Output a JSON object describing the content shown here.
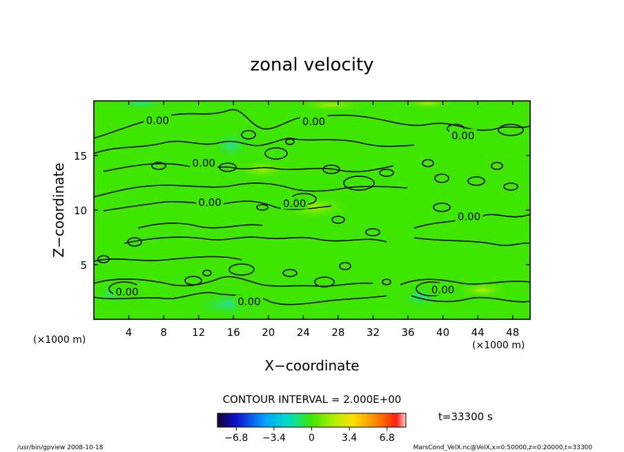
{
  "chart_data": {
    "type": "heatmap",
    "title": "zonal velocity",
    "xlabel": "X−coordinate",
    "ylabel": "Z−coordinate",
    "x_unit_left": "(×1000 m)",
    "x_unit_right": "(×1000 m)",
    "xlim": [
      0,
      50
    ],
    "ylim": [
      0,
      20
    ],
    "xticks": [
      "4",
      "8",
      "12",
      "16",
      "20",
      "24",
      "28",
      "32",
      "36",
      "40",
      "44",
      "48"
    ],
    "xtick_values": [
      4,
      8,
      12,
      16,
      20,
      24,
      28,
      32,
      36,
      40,
      44,
      48
    ],
    "yticks": [
      "5",
      "10",
      "15"
    ],
    "ytick_values": [
      5,
      10,
      15
    ],
    "contour_interval_text": "CONTOUR INTERVAL = 2.000E+00",
    "contour_level": 0.0,
    "contour_labels": [
      {
        "text": "0.00",
        "x": 7.3,
        "y": 18.2
      },
      {
        "text": "0.00",
        "x": 25.2,
        "y": 18.1
      },
      {
        "text": "0.00",
        "x": 42.3,
        "y": 16.8
      },
      {
        "text": "0.00",
        "x": 12.6,
        "y": 14.3
      },
      {
        "text": "0.00",
        "x": 13.3,
        "y": 10.7
      },
      {
        "text": "0.00",
        "x": 23.0,
        "y": 10.6
      },
      {
        "text": "0.00",
        "x": 43.0,
        "y": 9.4
      },
      {
        "text": "0.00",
        "x": 3.8,
        "y": 2.5
      },
      {
        "text": "0.00",
        "x": 17.8,
        "y": 1.6
      },
      {
        "text": "0.00",
        "x": 40.0,
        "y": 2.7
      }
    ],
    "colorbar": {
      "ticks": [
        "−6.8",
        "−3.4",
        "0",
        "3.4",
        "6.8"
      ],
      "tick_values": [
        -6.8,
        -3.4,
        0,
        3.4,
        6.8
      ],
      "range": [
        -8.5,
        8.5
      ]
    },
    "colors": {
      "background_field": "#3ee600",
      "contour": "#000000"
    }
  },
  "time_label": "t=33300 s",
  "footer_left": "/usr/bin/gpview  2008-10-18",
  "footer_right": "MarsCond_VelX.nc@VelX,x=0:50000,z=0:20000,t=33300"
}
